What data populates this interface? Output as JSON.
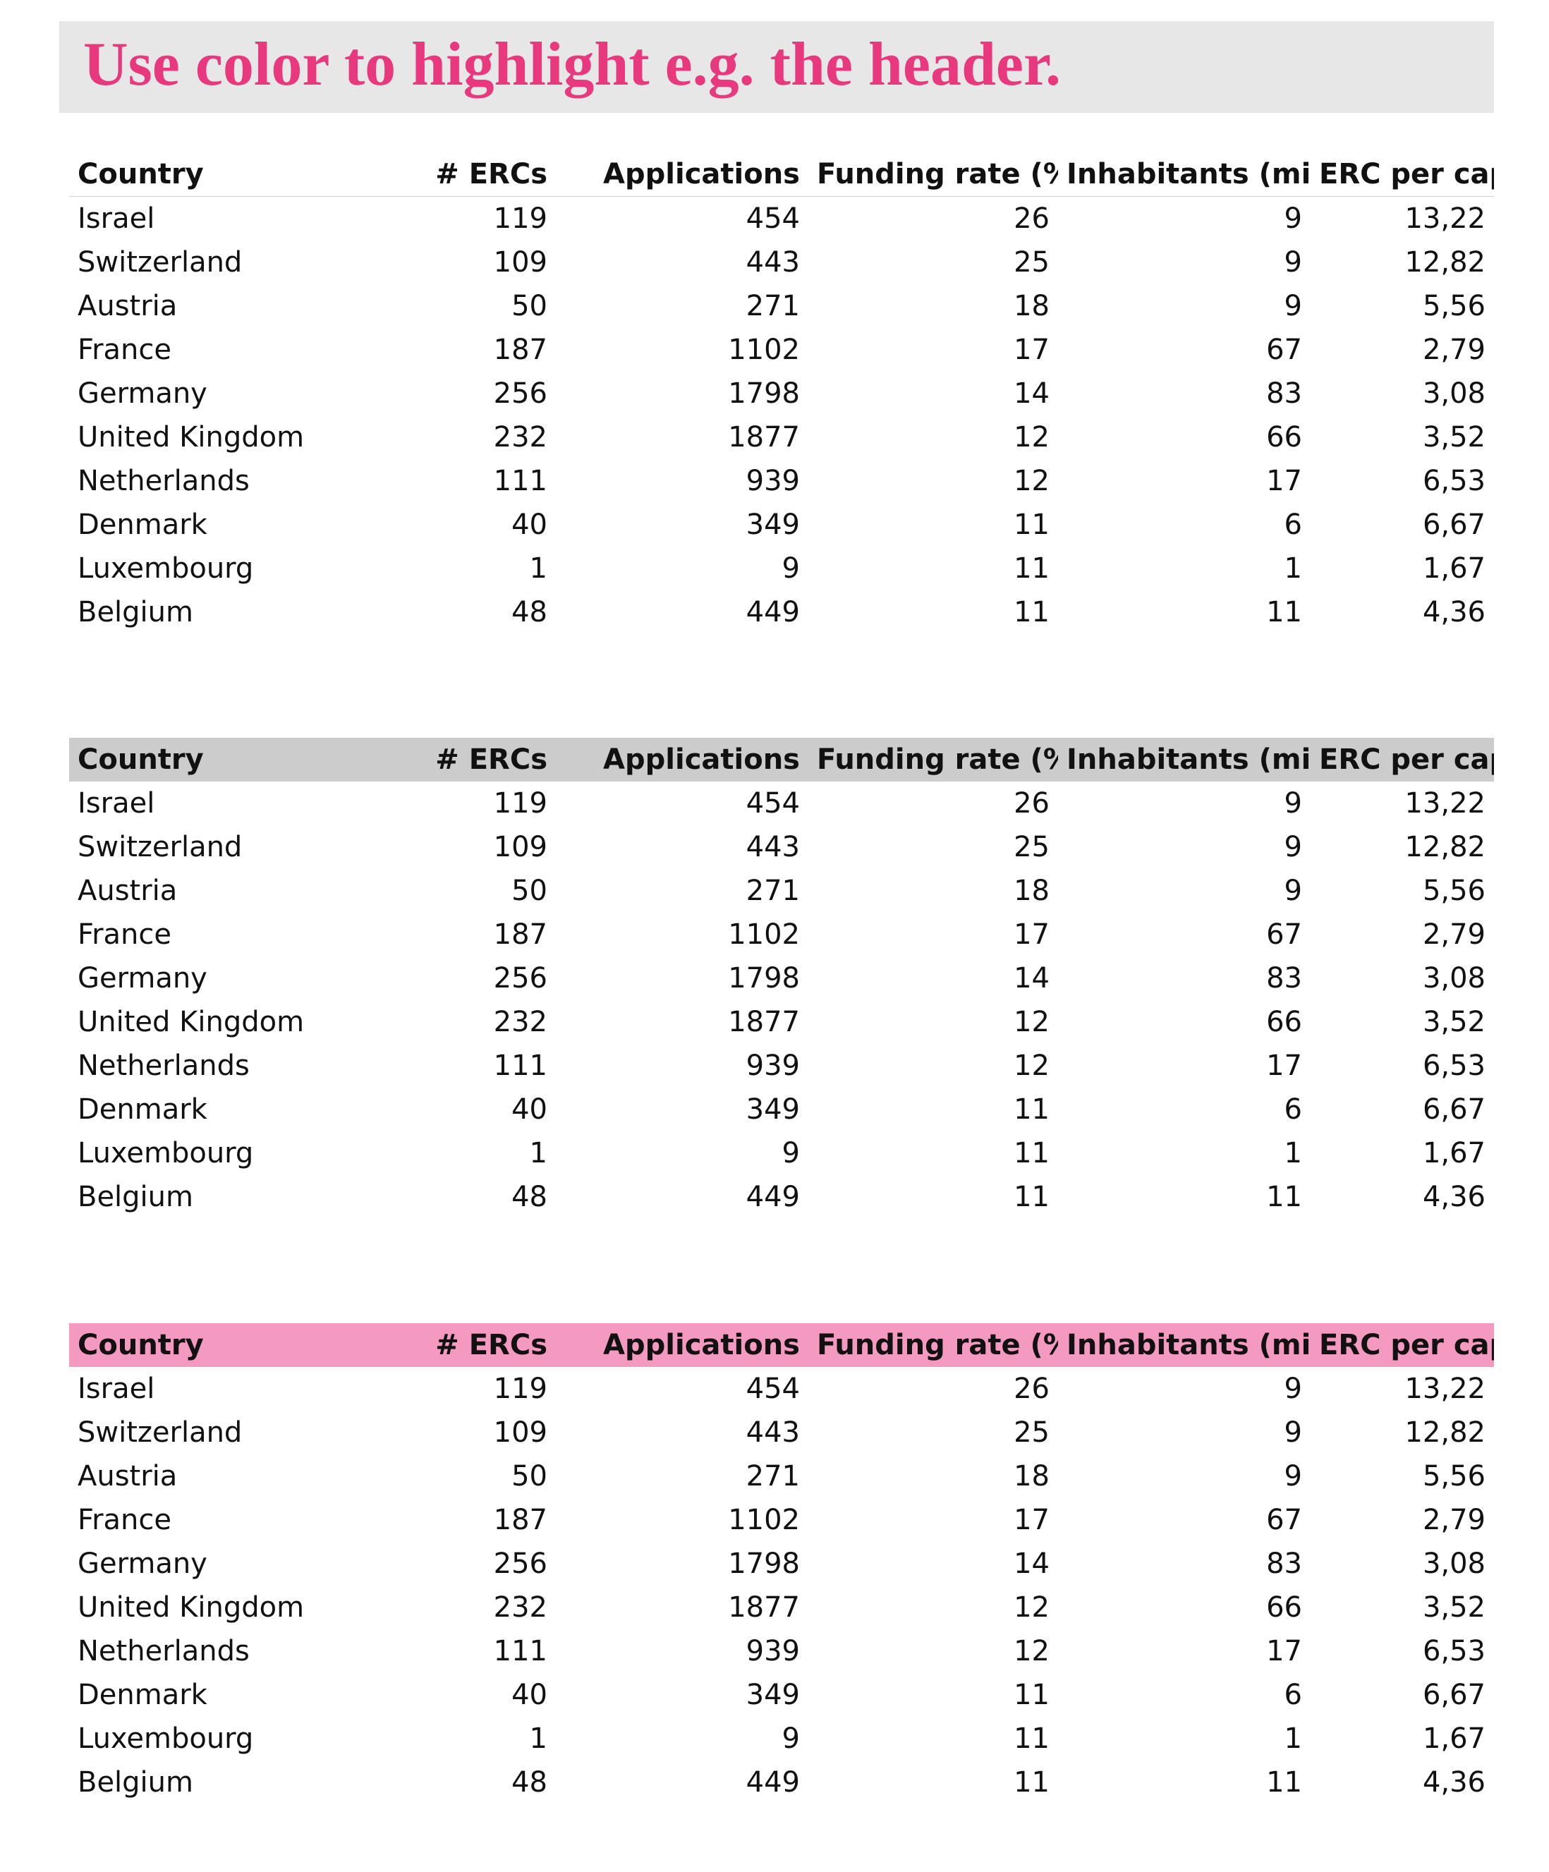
{
  "title": "Use color to highlight e.g. the header.",
  "colors": {
    "title_text": "#e8397f",
    "title_banner": "#e7e7e8",
    "header_plain": "#ffffff",
    "header_gray": "#cccccc",
    "header_pink": "#f49ac1"
  },
  "columns": [
    "Country",
    "# ERCs",
    "Applications",
    "Funding rate (%)",
    "Inhabitants (mio)",
    "ERC per capita"
  ],
  "rows": [
    [
      "Israel",
      "119",
      "454",
      "26",
      "9",
      "13,22"
    ],
    [
      "Switzerland",
      "109",
      "443",
      "25",
      "9",
      "12,82"
    ],
    [
      "Austria",
      "50",
      "271",
      "18",
      "9",
      "5,56"
    ],
    [
      "France",
      "187",
      "1102",
      "17",
      "67",
      "2,79"
    ],
    [
      "Germany",
      "256",
      "1798",
      "14",
      "83",
      "3,08"
    ],
    [
      "United Kingdom",
      "232",
      "1877",
      "12",
      "66",
      "3,52"
    ],
    [
      "Netherlands",
      "111",
      "939",
      "12",
      "17",
      "6,53"
    ],
    [
      "Denmark",
      "40",
      "349",
      "11",
      "6",
      "6,67"
    ],
    [
      "Luxembourg",
      "1",
      "9",
      "11",
      "1",
      "1,67"
    ],
    [
      "Belgium",
      "48",
      "449",
      "11",
      "11",
      "4,36"
    ]
  ],
  "tables": [
    {
      "header_style": "plain"
    },
    {
      "header_style": "gray"
    },
    {
      "header_style": "pink"
    }
  ]
}
